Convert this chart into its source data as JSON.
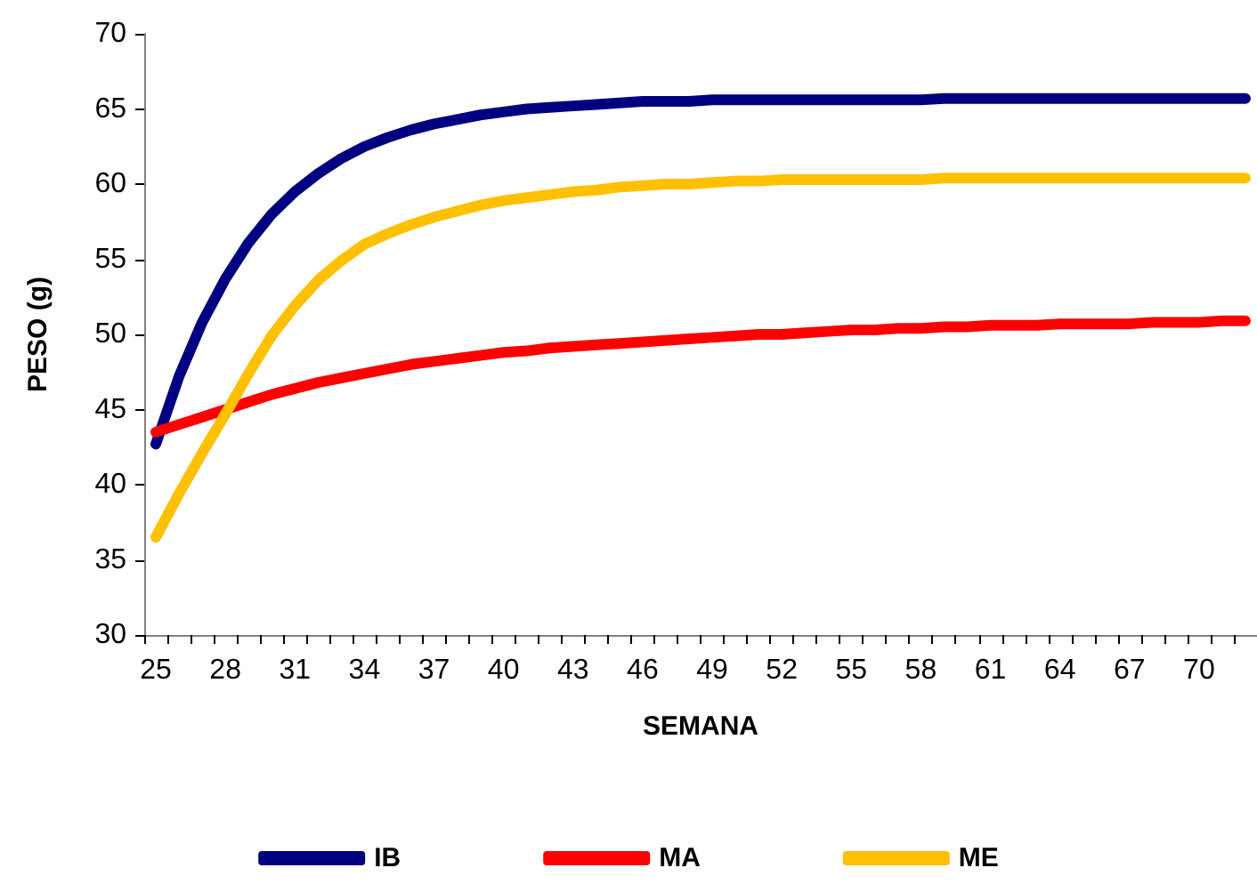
{
  "chart_data": {
    "type": "line",
    "xlabel": "SEMANA",
    "ylabel": "PESO (g)",
    "categories": [
      "25",
      null,
      null,
      "28",
      null,
      null,
      "31",
      null,
      null,
      "34",
      null,
      null,
      "37",
      null,
      null,
      "40",
      null,
      null,
      "43",
      null,
      null,
      "46",
      null,
      null,
      "49",
      null,
      null,
      "52",
      null,
      null,
      "55",
      null,
      null,
      "58",
      null,
      null,
      "61",
      null,
      null,
      "64",
      null,
      null,
      "67",
      null,
      null,
      "70",
      null,
      null
    ],
    "series": [
      {
        "name": "IB",
        "color": "#000080",
        "values": [
          42.7,
          47.2,
          50.8,
          53.7,
          56.1,
          58.0,
          59.5,
          60.7,
          61.7,
          62.5,
          63.1,
          63.6,
          64.0,
          64.3,
          64.6,
          64.8,
          65.0,
          65.1,
          65.2,
          65.3,
          65.4,
          65.5,
          65.5,
          65.5,
          65.6,
          65.6,
          65.6,
          65.6,
          65.6,
          65.6,
          65.6,
          65.6,
          65.6,
          65.6,
          65.7,
          65.7,
          65.7,
          65.7,
          65.7,
          65.7,
          65.7,
          65.7,
          65.7,
          65.7,
          65.7,
          65.7,
          65.7,
          65.7
        ]
      },
      {
        "name": "MA",
        "color": "#ff0000",
        "values": [
          43.5,
          44.0,
          44.5,
          45.0,
          45.5,
          46.0,
          46.4,
          46.8,
          47.1,
          47.4,
          47.7,
          48.0,
          48.2,
          48.4,
          48.6,
          48.8,
          48.9,
          49.1,
          49.2,
          49.3,
          49.4,
          49.5,
          49.6,
          49.7,
          49.8,
          49.9,
          50.0,
          50.0,
          50.1,
          50.2,
          50.3,
          50.3,
          50.4,
          50.4,
          50.5,
          50.5,
          50.6,
          50.6,
          50.6,
          50.7,
          50.7,
          50.7,
          50.7,
          50.8,
          50.8,
          50.8,
          50.9,
          50.9
        ]
      },
      {
        "name": "ME",
        "color": "#ffc000",
        "values": [
          36.5,
          39.4,
          42.1,
          44.7,
          47.4,
          49.9,
          51.9,
          53.6,
          54.9,
          56.0,
          56.7,
          57.3,
          57.8,
          58.2,
          58.6,
          58.9,
          59.1,
          59.3,
          59.5,
          59.6,
          59.8,
          59.9,
          60.0,
          60.0,
          60.1,
          60.2,
          60.2,
          60.3,
          60.3,
          60.3,
          60.3,
          60.3,
          60.3,
          60.3,
          60.4,
          60.4,
          60.4,
          60.4,
          60.4,
          60.4,
          60.4,
          60.4,
          60.4,
          60.4,
          60.4,
          60.4,
          60.4,
          60.4
        ]
      }
    ],
    "ylim": [
      30,
      70
    ],
    "yticks": [
      30,
      35,
      40,
      45,
      50,
      55,
      60,
      65,
      70
    ],
    "grid": false,
    "legend": "bottom",
    "marker": "none",
    "line_style": "solid"
  }
}
